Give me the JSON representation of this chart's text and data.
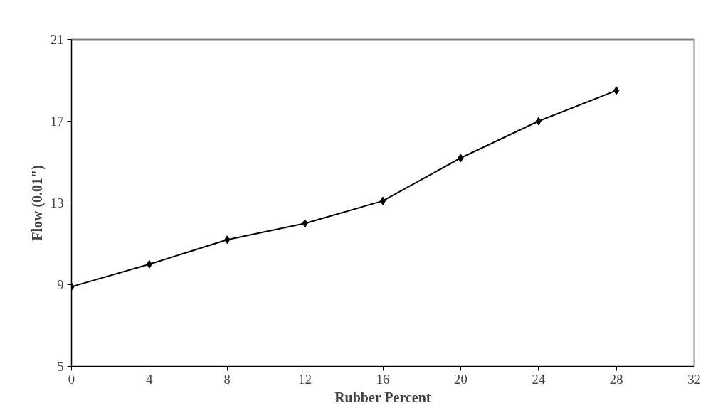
{
  "chart_data": {
    "type": "line",
    "xlabel": "Rubber Percent",
    "ylabel": "Flow (0.01\")",
    "x": [
      0,
      4,
      8,
      12,
      16,
      20,
      24,
      28
    ],
    "series": [
      {
        "color": "#000000",
        "values": [
          8.9,
          10.0,
          11.2,
          12.0,
          13.1,
          15.2,
          17.0,
          18.5
        ]
      }
    ],
    "xlim": [
      0,
      32
    ],
    "xticks": [
      0,
      4,
      8,
      12,
      16,
      20,
      24,
      28,
      32
    ],
    "ylim": [
      5,
      21
    ],
    "yticks": [
      5,
      9,
      13,
      17,
      21
    ],
    "grid": false,
    "marker": "diamond",
    "line_style": "solid"
  }
}
